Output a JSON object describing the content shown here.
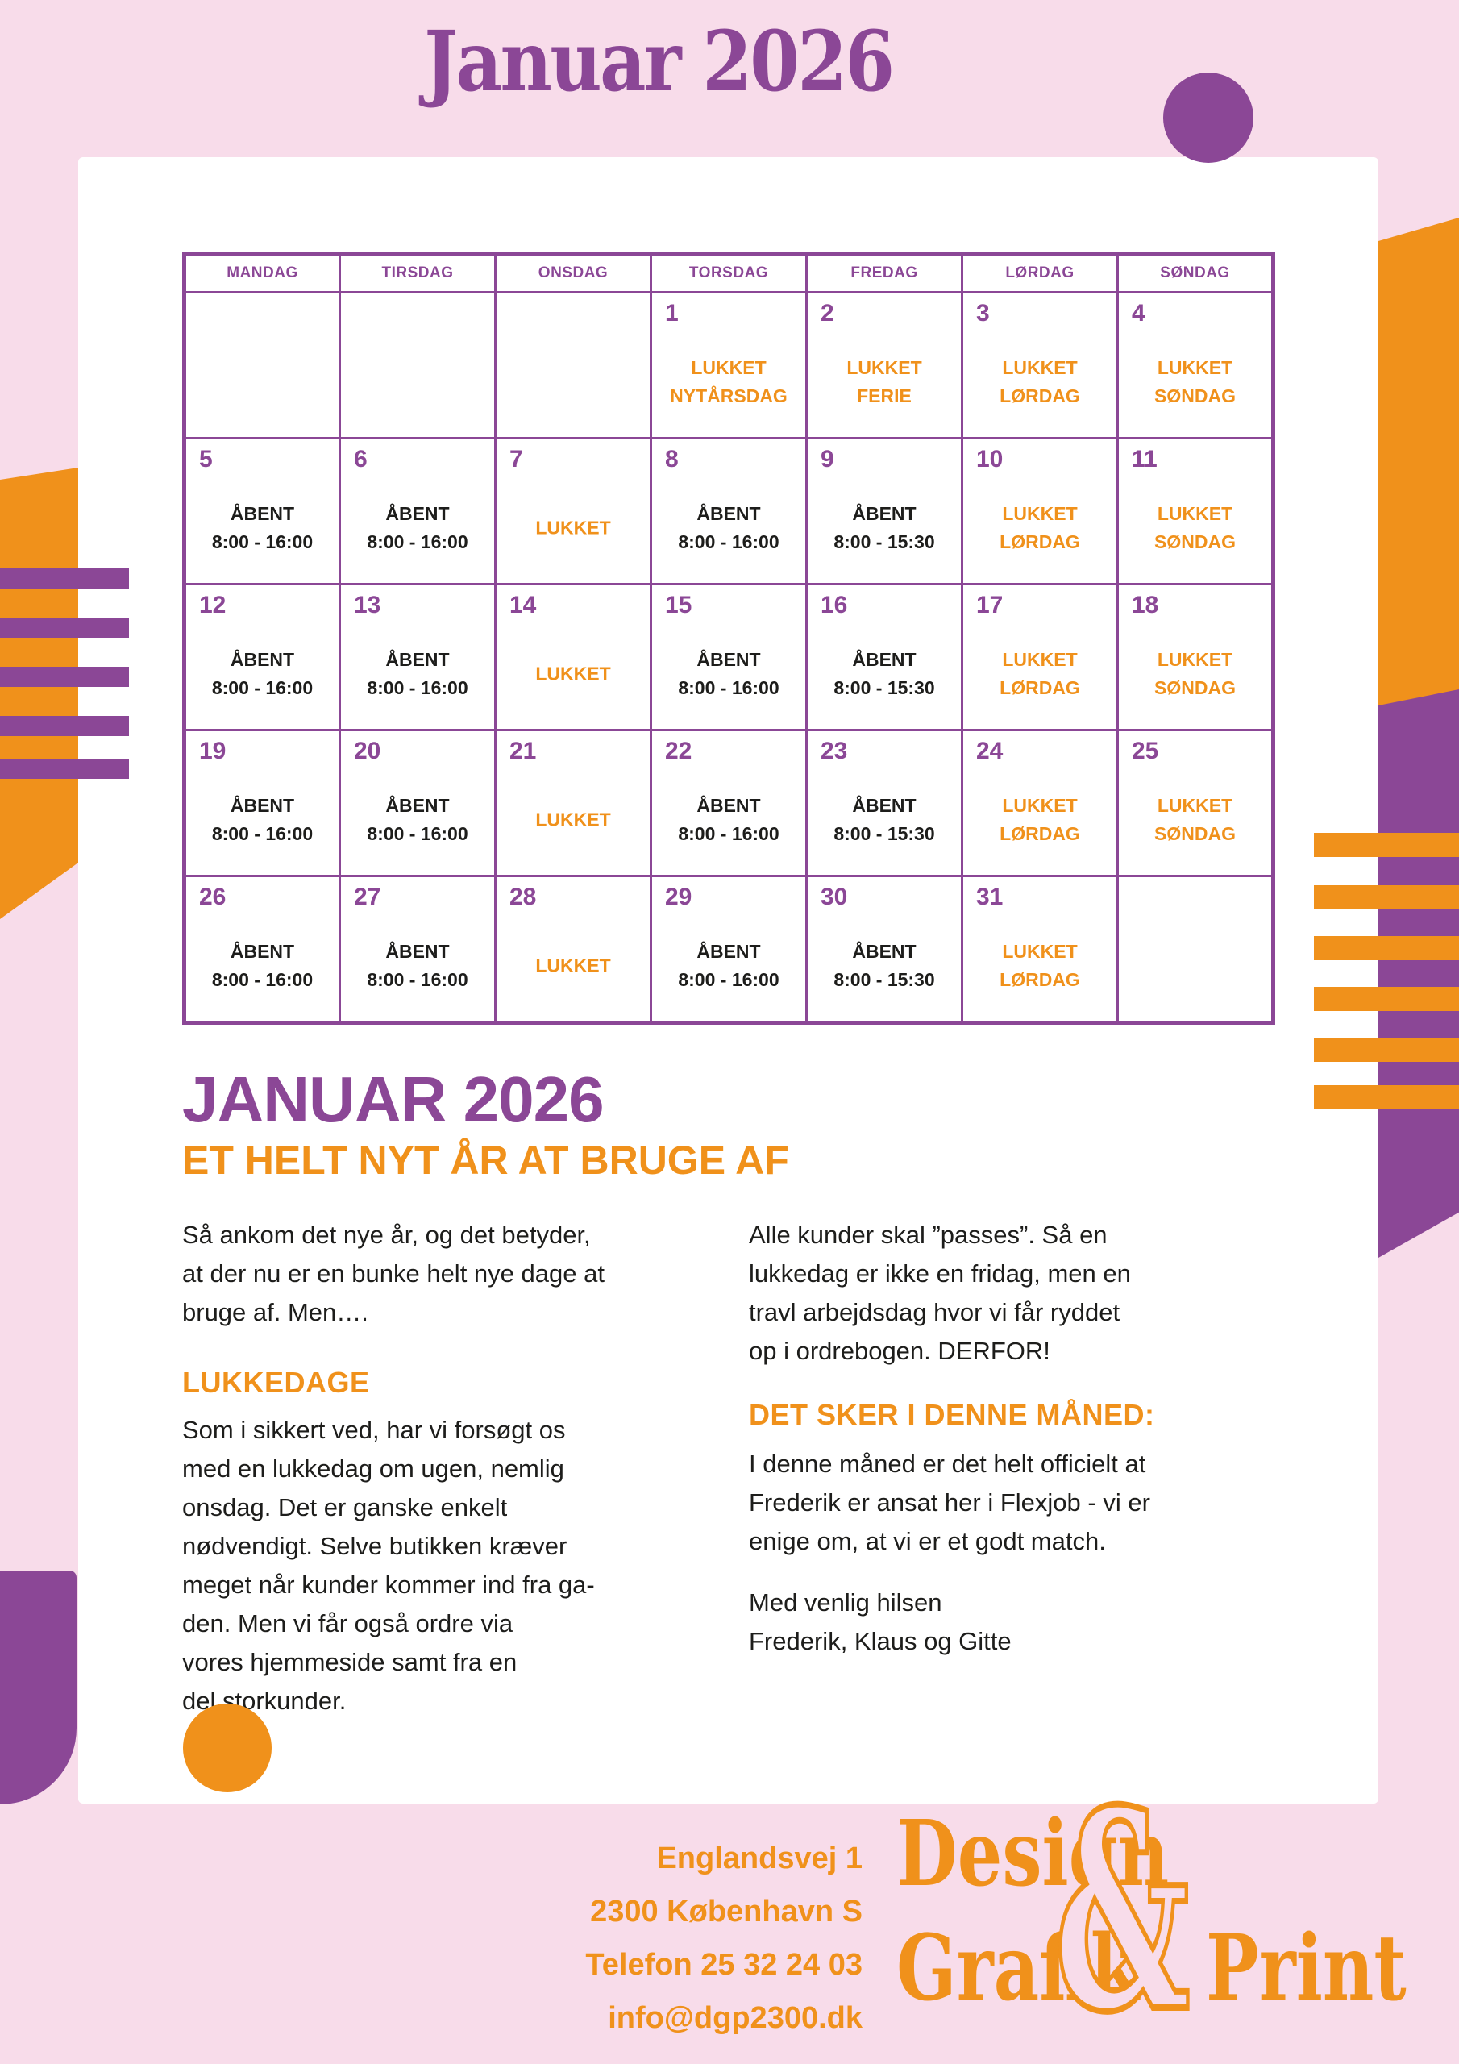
{
  "colors": {
    "purple": "#8b4796",
    "orange": "#f0911b",
    "pink": "#f8dcea",
    "ink": "#1d1d1b",
    "card": "#ffffff"
  },
  "title": "Januar 2026",
  "calendar": {
    "day_headers": [
      "MANDAG",
      "TIRSDAG",
      "ONSDAG",
      "TORSDAG",
      "FREDAG",
      "LØRDAG",
      "SØNDAG"
    ],
    "weeks": [
      [
        {},
        {},
        {},
        {
          "day": "1",
          "status": "LUKKET\nNYTÅRSDAG",
          "closed": true
        },
        {
          "day": "2",
          "status": "LUKKET\nFERIE",
          "closed": true
        },
        {
          "day": "3",
          "status": "LUKKET\nLØRDAG",
          "closed": true
        },
        {
          "day": "4",
          "status": "LUKKET\nSØNDAG",
          "closed": true
        }
      ],
      [
        {
          "day": "5",
          "status": "ÅBENT\n8:00 - 16:00"
        },
        {
          "day": "6",
          "status": "ÅBENT\n8:00 - 16:00"
        },
        {
          "day": "7",
          "status": "LUKKET",
          "closed": true
        },
        {
          "day": "8",
          "status": "ÅBENT\n8:00 - 16:00"
        },
        {
          "day": "9",
          "status": "ÅBENT\n8:00 - 15:30"
        },
        {
          "day": "10",
          "status": "LUKKET\nLØRDAG",
          "closed": true
        },
        {
          "day": "11",
          "status": "LUKKET\nSØNDAG",
          "closed": true
        }
      ],
      [
        {
          "day": "12",
          "status": "ÅBENT\n8:00 - 16:00"
        },
        {
          "day": "13",
          "status": "ÅBENT\n8:00 - 16:00"
        },
        {
          "day": "14",
          "status": "LUKKET",
          "closed": true
        },
        {
          "day": "15",
          "status": "ÅBENT\n8:00 - 16:00"
        },
        {
          "day": "16",
          "status": "ÅBENT\n8:00 - 15:30"
        },
        {
          "day": "17",
          "status": "LUKKET\nLØRDAG",
          "closed": true
        },
        {
          "day": "18",
          "status": "LUKKET\nSØNDAG",
          "closed": true
        }
      ],
      [
        {
          "day": "19",
          "status": "ÅBENT\n8:00 - 16:00"
        },
        {
          "day": "20",
          "status": "ÅBENT\n8:00 - 16:00"
        },
        {
          "day": "21",
          "status": "LUKKET",
          "closed": true
        },
        {
          "day": "22",
          "status": "ÅBENT\n8:00 - 16:00"
        },
        {
          "day": "23",
          "status": "ÅBENT\n8:00 - 15:30"
        },
        {
          "day": "24",
          "status": "LUKKET\nLØRDAG",
          "closed": true
        },
        {
          "day": "25",
          "status": "LUKKET\nSØNDAG",
          "closed": true
        }
      ],
      [
        {
          "day": "26",
          "status": "ÅBENT\n8:00 - 16:00"
        },
        {
          "day": "27",
          "status": "ÅBENT\n8:00 - 16:00"
        },
        {
          "day": "28",
          "status": "LUKKET",
          "closed": true
        },
        {
          "day": "29",
          "status": "ÅBENT\n8:00 - 16:00"
        },
        {
          "day": "30",
          "status": "ÅBENT\n8:00 - 15:30"
        },
        {
          "day": "31",
          "status": "LUKKET\nLØRDAG",
          "closed": true
        },
        {}
      ]
    ]
  },
  "article": {
    "heading": "JANUAR 2026",
    "subheading": "ET HELT NYT ÅR AT BRUGE AF",
    "left": {
      "p1": "Så ankom det nye år, og det betyder,\nat der nu er en bunke helt nye dage at\nbruge af. Men….",
      "h1": "LUKKEDAGE",
      "p2": "Som i sikkert ved, har vi forsøgt os\nmed en lukkedag om ugen, nemlig\nonsdag. Det er ganske enkelt\nnødvendigt. Selve butikken kræver\nmeget når kunder kommer ind fra ga-\nden. Men vi får også ordre via\nvores hjemmeside samt fra en\ndel storkunder."
    },
    "right": {
      "p1": "Alle kunder skal ”passes”. Så en\nlukkedag er ikke en fridag, men en\ntravl arbejdsdag hvor vi får ryddet\nop i ordrebogen. DERFOR!",
      "h1": "DET SKER I DENNE MÅNED:",
      "p2": "I denne måned er det helt officielt at\nFrederik er ansat her i Flexjob - vi er\nenige om, at vi er et godt match.",
      "p3": "Med venlig hilsen\nFrederik, Klaus og Gitte"
    }
  },
  "footer": {
    "address": "Englandsvej 1\n2300 København S\nTelefon 25 32 24 03\ninfo@dgp2300.dk",
    "logo": {
      "word1": "Design",
      "word2": "Grafik",
      "amp": "&",
      "word3": "Print"
    }
  }
}
